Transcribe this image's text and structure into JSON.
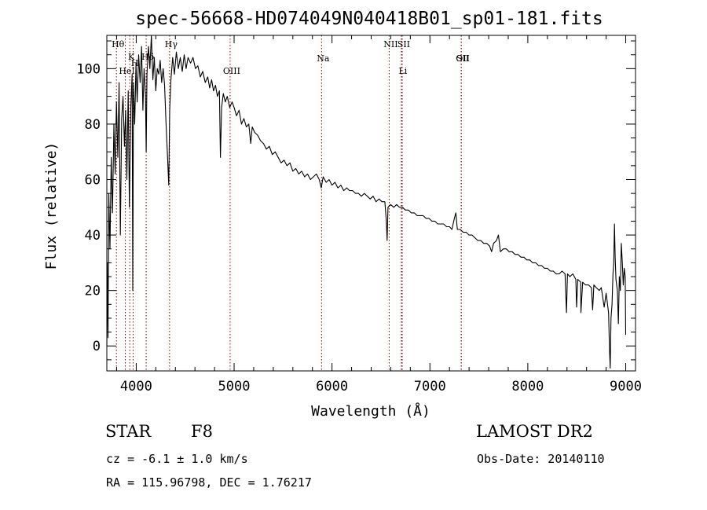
{
  "chart_data": {
    "type": "line",
    "title": "spec-56668-HD074049N040418B01_sp01-181.fits",
    "xlabel": "Wavelength (Å)",
    "ylabel": "Flux (relative)",
    "xlim": [
      3700,
      9100
    ],
    "ylim": [
      -9,
      112
    ],
    "x_ticks": [
      4000,
      5000,
      6000,
      7000,
      8000,
      9000
    ],
    "y_ticks": [
      0,
      20,
      40,
      60,
      80,
      100
    ],
    "grid": false,
    "series": [
      {
        "points": [
          [
            3700,
            0
          ],
          [
            3705,
            30
          ],
          [
            3712,
            3
          ],
          [
            3720,
            55
          ],
          [
            3732,
            35
          ],
          [
            3745,
            68
          ],
          [
            3758,
            48
          ],
          [
            3772,
            80
          ],
          [
            3785,
            62
          ],
          [
            3798,
            88
          ],
          [
            3812,
            68
          ],
          [
            3825,
            95
          ],
          [
            3838,
            40
          ],
          [
            3852,
            82
          ],
          [
            3865,
            90
          ],
          [
            3880,
            72
          ],
          [
            3892,
            85
          ],
          [
            3905,
            60
          ],
          [
            3918,
            92
          ],
          [
            3930,
            50
          ],
          [
            3945,
            86
          ],
          [
            3958,
            98
          ],
          [
            3965,
            20
          ],
          [
            3972,
            95
          ],
          [
            3985,
            80
          ],
          [
            3998,
            102
          ],
          [
            4010,
            88
          ],
          [
            4025,
            105
          ],
          [
            4040,
            95
          ],
          [
            4055,
            108
          ],
          [
            4068,
            85
          ],
          [
            4080,
            100
          ],
          [
            4095,
            90
          ],
          [
            4102,
            70
          ],
          [
            4110,
            98
          ],
          [
            4125,
            108
          ],
          [
            4140,
            100
          ],
          [
            4155,
            112
          ],
          [
            4170,
            96
          ],
          [
            4185,
            104
          ],
          [
            4200,
            92
          ],
          [
            4215,
            100
          ],
          [
            4230,
            98
          ],
          [
            4245,
            103
          ],
          [
            4260,
            95
          ],
          [
            4275,
            100
          ],
          [
            4290,
            94
          ],
          [
            4305,
            80
          ],
          [
            4318,
            70
          ],
          [
            4332,
            58
          ],
          [
            4342,
            85
          ],
          [
            4355,
            96
          ],
          [
            4372,
            104
          ],
          [
            4390,
            98
          ],
          [
            4410,
            106
          ],
          [
            4430,
            100
          ],
          [
            4450,
            104
          ],
          [
            4470,
            99
          ],
          [
            4490,
            105
          ],
          [
            4510,
            100
          ],
          [
            4530,
            104
          ],
          [
            4555,
            102
          ],
          [
            4580,
            104
          ],
          [
            4605,
            100
          ],
          [
            4630,
            101
          ],
          [
            4655,
            97
          ],
          [
            4680,
            99
          ],
          [
            4705,
            95
          ],
          [
            4730,
            97
          ],
          [
            4750,
            93
          ],
          [
            4770,
            96
          ],
          [
            4790,
            92
          ],
          [
            4810,
            94
          ],
          [
            4830,
            90
          ],
          [
            4850,
            92
          ],
          [
            4860,
            68
          ],
          [
            4872,
            86
          ],
          [
            4890,
            91
          ],
          [
            4910,
            88
          ],
          [
            4930,
            90
          ],
          [
            4955,
            86
          ],
          [
            4980,
            88
          ],
          [
            5000,
            86
          ],
          [
            5025,
            83
          ],
          [
            5050,
            85
          ],
          [
            5075,
            80
          ],
          [
            5100,
            82
          ],
          [
            5125,
            79
          ],
          [
            5150,
            80
          ],
          [
            5170,
            73
          ],
          [
            5185,
            79
          ],
          [
            5210,
            77
          ],
          [
            5240,
            76
          ],
          [
            5270,
            74
          ],
          [
            5300,
            73
          ],
          [
            5330,
            71
          ],
          [
            5360,
            72
          ],
          [
            5390,
            69
          ],
          [
            5420,
            70
          ],
          [
            5450,
            68
          ],
          [
            5480,
            66
          ],
          [
            5510,
            67
          ],
          [
            5540,
            65
          ],
          [
            5570,
            66
          ],
          [
            5600,
            63
          ],
          [
            5630,
            64
          ],
          [
            5660,
            62
          ],
          [
            5690,
            63
          ],
          [
            5720,
            61
          ],
          [
            5750,
            62
          ],
          [
            5780,
            60
          ],
          [
            5810,
            61
          ],
          [
            5840,
            62
          ],
          [
            5870,
            60
          ],
          [
            5890,
            57
          ],
          [
            5910,
            61
          ],
          [
            5940,
            59
          ],
          [
            5970,
            60
          ],
          [
            6000,
            58
          ],
          [
            6030,
            59
          ],
          [
            6060,
            57
          ],
          [
            6090,
            58
          ],
          [
            6120,
            56
          ],
          [
            6150,
            57
          ],
          [
            6180,
            56
          ],
          [
            6210,
            56
          ],
          [
            6240,
            55
          ],
          [
            6270,
            55
          ],
          [
            6300,
            54
          ],
          [
            6330,
            55
          ],
          [
            6360,
            54
          ],
          [
            6390,
            53
          ],
          [
            6420,
            54
          ],
          [
            6450,
            52
          ],
          [
            6480,
            53
          ],
          [
            6510,
            52
          ],
          [
            6540,
            52
          ],
          [
            6555,
            45
          ],
          [
            6563,
            38
          ],
          [
            6572,
            50
          ],
          [
            6600,
            51
          ],
          [
            6630,
            50
          ],
          [
            6660,
            51
          ],
          [
            6690,
            50
          ],
          [
            6720,
            50
          ],
          [
            6750,
            49
          ],
          [
            6780,
            49
          ],
          [
            6810,
            48
          ],
          [
            6840,
            48
          ],
          [
            6870,
            47
          ],
          [
            6900,
            47
          ],
          [
            6930,
            47
          ],
          [
            6960,
            46
          ],
          [
            6990,
            46
          ],
          [
            7020,
            45
          ],
          [
            7050,
            45
          ],
          [
            7080,
            44
          ],
          [
            7110,
            44
          ],
          [
            7140,
            44
          ],
          [
            7170,
            43
          ],
          [
            7200,
            43
          ],
          [
            7225,
            42
          ],
          [
            7250,
            46
          ],
          [
            7265,
            48
          ],
          [
            7280,
            42
          ],
          [
            7310,
            42
          ],
          [
            7340,
            41
          ],
          [
            7370,
            41
          ],
          [
            7400,
            40
          ],
          [
            7430,
            40
          ],
          [
            7460,
            39
          ],
          [
            7490,
            38
          ],
          [
            7520,
            38
          ],
          [
            7550,
            37
          ],
          [
            7580,
            37
          ],
          [
            7610,
            36
          ],
          [
            7630,
            34
          ],
          [
            7650,
            37
          ],
          [
            7680,
            38
          ],
          [
            7700,
            40
          ],
          [
            7720,
            34
          ],
          [
            7750,
            35
          ],
          [
            7780,
            35
          ],
          [
            7810,
            34
          ],
          [
            7840,
            34
          ],
          [
            7870,
            33
          ],
          [
            7900,
            33
          ],
          [
            7930,
            32
          ],
          [
            7960,
            32
          ],
          [
            7990,
            31
          ],
          [
            8020,
            31
          ],
          [
            8050,
            30
          ],
          [
            8080,
            30
          ],
          [
            8110,
            29
          ],
          [
            8140,
            29
          ],
          [
            8170,
            28
          ],
          [
            8200,
            28
          ],
          [
            8230,
            27
          ],
          [
            8260,
            27
          ],
          [
            8290,
            26
          ],
          [
            8320,
            26
          ],
          [
            8350,
            27
          ],
          [
            8380,
            26
          ],
          [
            8395,
            12
          ],
          [
            8405,
            26
          ],
          [
            8430,
            25
          ],
          [
            8460,
            26
          ],
          [
            8490,
            24
          ],
          [
            8498,
            14
          ],
          [
            8510,
            24
          ],
          [
            8540,
            23
          ],
          [
            8542,
            12
          ],
          [
            8560,
            23
          ],
          [
            8590,
            22
          ],
          [
            8620,
            22
          ],
          [
            8650,
            21
          ],
          [
            8662,
            13
          ],
          [
            8675,
            22
          ],
          [
            8700,
            21
          ],
          [
            8730,
            20
          ],
          [
            8750,
            21
          ],
          [
            8780,
            14
          ],
          [
            8800,
            19
          ],
          [
            8825,
            12
          ],
          [
            8835,
            -2
          ],
          [
            8842,
            -8
          ],
          [
            8850,
            10
          ],
          [
            8860,
            15
          ],
          [
            8870,
            26
          ],
          [
            8878,
            30
          ],
          [
            8885,
            44
          ],
          [
            8892,
            32
          ],
          [
            8900,
            24
          ],
          [
            8915,
            20
          ],
          [
            8925,
            8
          ],
          [
            8935,
            25
          ],
          [
            8945,
            20
          ],
          [
            8955,
            37
          ],
          [
            8965,
            30
          ],
          [
            8975,
            22
          ],
          [
            8985,
            28
          ],
          [
            8995,
            25
          ],
          [
            9000,
            4
          ]
        ]
      }
    ],
    "lines": [
      {
        "label": "Hθ",
        "x": 3798,
        "row": 0
      },
      {
        "label": "HeI",
        "x": 3889,
        "row": 1
      },
      {
        "label": "K",
        "x": 3934,
        "row": 2
      },
      {
        "label": "H",
        "x": 3969,
        "row": 3
      },
      {
        "label": "Hδ",
        "x": 4102,
        "row": 2
      },
      {
        "label": "Hγ",
        "x": 4341,
        "row": 0
      },
      {
        "label": "OIII",
        "x": 4959,
        "row": 1
      },
      {
        "label": "Na",
        "x": 5893,
        "row": 4
      },
      {
        "label": "NII",
        "x": 6584,
        "row": 0
      },
      {
        "label": "Li",
        "x": 6708,
        "row": 1
      },
      {
        "label": "SII",
        "x": 6717,
        "row": 0
      },
      {
        "label": "OII",
        "x": 7320,
        "row": 4
      },
      {
        "label": "SII",
        "x": 7320,
        "row": 4
      }
    ]
  },
  "info": {
    "object_class": "STAR",
    "subclass": "F8",
    "survey": "LAMOST DR2",
    "cz": "cz = -6.1 ± 1.0 km/s",
    "obs_date": "Obs-Date: 20140110",
    "coords": "RA = 115.96798, DEC =   1.76217"
  }
}
